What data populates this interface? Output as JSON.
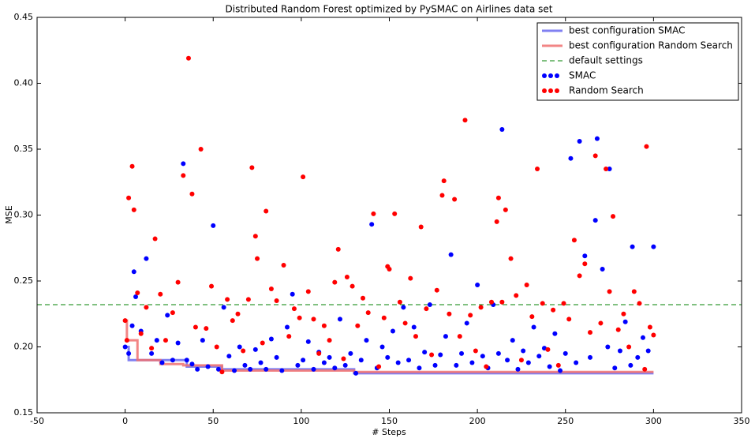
{
  "chart_data": {
    "type": "scatter",
    "title": "Distributed Random Forest optimized by PySMAC on Airlines data set",
    "x_label": "# Steps",
    "y_label": "MSE",
    "xlim": [
      -50,
      350
    ],
    "xticks": [
      -50,
      0,
      50,
      100,
      150,
      200,
      250,
      300,
      350
    ],
    "ylim": [
      0.15,
      0.45
    ],
    "yticks": [
      0.15,
      {
        "value": 0.2,
        "label": "0.20"
      },
      0.25,
      {
        "value": 0.3,
        "label": "0.30"
      },
      0.35,
      {
        "value": 0.4,
        "label": "0.40"
      },
      0.45
    ],
    "legend": "upper right",
    "series": [
      {
        "name": "best configuration SMAC",
        "color": "#6a6af0",
        "style": "line",
        "x": [
          0,
          2,
          2,
          35,
          35,
          55,
          55,
          130,
          130,
          300
        ],
        "values": [
          0.2,
          0.2,
          0.19,
          0.19,
          0.185,
          0.185,
          0.183,
          0.183,
          0.18,
          0.18
        ]
      },
      {
        "name": "best configuration Random Search",
        "color": "#f07070",
        "style": "line",
        "x": [
          0,
          1,
          1,
          7,
          7,
          20,
          20,
          33,
          33,
          55,
          55,
          130,
          130,
          300
        ],
        "values": [
          0.22,
          0.22,
          0.205,
          0.205,
          0.19,
          0.19,
          0.187,
          0.187,
          0.186,
          0.186,
          0.182,
          0.182,
          0.181,
          0.181
        ]
      },
      {
        "name": "default settings",
        "color": "#008000",
        "style": "dashed",
        "x": [
          -50,
          350
        ],
        "values": [
          0.232,
          0.232
        ]
      },
      {
        "name": "SMAC",
        "color": "#0000ff",
        "style": "scatter",
        "x": [
          0,
          2,
          4,
          5,
          6,
          9,
          12,
          15,
          18,
          21,
          24,
          27,
          30,
          33,
          35,
          38,
          41,
          44,
          47,
          50,
          53,
          56,
          59,
          62,
          65,
          68,
          71,
          74,
          77,
          80,
          83,
          86,
          89,
          92,
          95,
          98,
          101,
          104,
          107,
          110,
          113,
          116,
          119,
          122,
          125,
          128,
          131,
          134,
          137,
          140,
          143,
          146,
          149,
          152,
          155,
          158,
          161,
          164,
          167,
          170,
          173,
          176,
          179,
          182,
          185,
          188,
          191,
          194,
          197,
          200,
          203,
          206,
          209,
          212,
          214,
          217,
          220,
          223,
          226,
          229,
          232,
          235,
          238,
          241,
          244,
          247,
          250,
          253,
          256,
          258,
          261,
          264,
          267,
          268,
          271,
          274,
          275,
          278,
          281,
          284,
          287,
          288,
          291,
          294,
          297,
          300
        ],
        "values": [
          0.2,
          0.195,
          0.216,
          0.257,
          0.238,
          0.212,
          0.267,
          0.195,
          0.205,
          0.188,
          0.224,
          0.19,
          0.203,
          0.339,
          0.19,
          0.187,
          0.183,
          0.205,
          0.185,
          0.292,
          0.183,
          0.23,
          0.193,
          0.182,
          0.2,
          0.186,
          0.183,
          0.198,
          0.188,
          0.183,
          0.206,
          0.192,
          0.182,
          0.215,
          0.24,
          0.186,
          0.19,
          0.204,
          0.183,
          0.196,
          0.188,
          0.192,
          0.184,
          0.221,
          0.186,
          0.195,
          0.18,
          0.19,
          0.205,
          0.293,
          0.184,
          0.2,
          0.192,
          0.212,
          0.188,
          0.23,
          0.19,
          0.215,
          0.184,
          0.196,
          0.232,
          0.186,
          0.194,
          0.208,
          0.27,
          0.186,
          0.195,
          0.218,
          0.188,
          0.247,
          0.193,
          0.184,
          0.232,
          0.195,
          0.365,
          0.19,
          0.205,
          0.183,
          0.197,
          0.188,
          0.215,
          0.193,
          0.199,
          0.185,
          0.21,
          0.182,
          0.195,
          0.343,
          0.188,
          0.356,
          0.269,
          0.192,
          0.296,
          0.358,
          0.259,
          0.2,
          0.335,
          0.184,
          0.197,
          0.219,
          0.186,
          0.276,
          0.192,
          0.207,
          0.197,
          0.276
        ]
      },
      {
        "name": "Random Search",
        "color": "#ff0000",
        "style": "scatter",
        "x": [
          0,
          1,
          2,
          4,
          5,
          7,
          9,
          12,
          15,
          17,
          20,
          23,
          27,
          30,
          33,
          36,
          38,
          40,
          43,
          46,
          49,
          52,
          55,
          58,
          61,
          64,
          67,
          70,
          72,
          74,
          75,
          78,
          80,
          83,
          86,
          90,
          93,
          96,
          99,
          101,
          104,
          107,
          110,
          113,
          116,
          119,
          121,
          124,
          126,
          129,
          132,
          135,
          138,
          141,
          144,
          147,
          149,
          150,
          153,
          156,
          159,
          162,
          165,
          168,
          171,
          174,
          177,
          180,
          181,
          184,
          187,
          190,
          193,
          196,
          199,
          202,
          205,
          208,
          211,
          212,
          214,
          216,
          219,
          222,
          225,
          228,
          231,
          234,
          237,
          240,
          243,
          246,
          249,
          252,
          255,
          258,
          261,
          264,
          267,
          270,
          273,
          275,
          277,
          280,
          283,
          286,
          289,
          292,
          295,
          296,
          298,
          300
        ],
        "values": [
          0.22,
          0.205,
          0.313,
          0.337,
          0.304,
          0.241,
          0.21,
          0.23,
          0.199,
          0.282,
          0.24,
          0.205,
          0.226,
          0.249,
          0.33,
          0.419,
          0.316,
          0.215,
          0.35,
          0.214,
          0.246,
          0.2,
          0.181,
          0.236,
          0.22,
          0.225,
          0.197,
          0.236,
          0.336,
          0.284,
          0.267,
          0.203,
          0.303,
          0.244,
          0.235,
          0.262,
          0.208,
          0.229,
          0.222,
          0.329,
          0.242,
          0.221,
          0.195,
          0.216,
          0.205,
          0.249,
          0.274,
          0.191,
          0.253,
          0.246,
          0.216,
          0.237,
          0.226,
          0.301,
          0.185,
          0.222,
          0.261,
          0.259,
          0.301,
          0.234,
          0.218,
          0.252,
          0.208,
          0.291,
          0.229,
          0.194,
          0.243,
          0.315,
          0.326,
          0.225,
          0.312,
          0.208,
          0.372,
          0.224,
          0.197,
          0.23,
          0.185,
          0.234,
          0.295,
          0.313,
          0.234,
          0.304,
          0.267,
          0.239,
          0.19,
          0.247,
          0.223,
          0.335,
          0.233,
          0.198,
          0.228,
          0.186,
          0.233,
          0.221,
          0.281,
          0.254,
          0.263,
          0.211,
          0.345,
          0.218,
          0.335,
          0.242,
          0.299,
          0.213,
          0.225,
          0.2,
          0.242,
          0.233,
          0.183,
          0.352,
          0.215,
          0.209
        ]
      }
    ]
  }
}
